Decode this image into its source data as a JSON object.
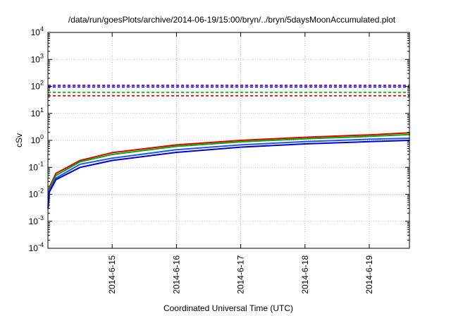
{
  "chart_data": {
    "type": "line",
    "title": "/data/run/goesPlots/archive/2014-06-19/15:00/bryn/../bryn/5daysMoonAccumulated.plot",
    "xlabel": "Coordinated Universal Time (UTC)",
    "ylabel": "cSv",
    "y_scale": "log",
    "ylim": [
      0.0001,
      10000
    ],
    "xlim": [
      "2014-06-14 00:00",
      "2014-06-19 15:00"
    ],
    "grid": true,
    "legend": "none",
    "x_ticks": [
      "2014-6-15",
      "2014-6-16",
      "2014-6-17",
      "2014-6-18",
      "2014-6-19"
    ],
    "y_ticks": [
      {
        "base": "10",
        "exp": "-4"
      },
      {
        "base": "10",
        "exp": "-3"
      },
      {
        "base": "10",
        "exp": "-2"
      },
      {
        "base": "10",
        "exp": "-1"
      },
      {
        "base": "10",
        "exp": "0"
      },
      {
        "base": "10",
        "exp": "1"
      },
      {
        "base": "10",
        "exp": "2"
      },
      {
        "base": "10",
        "exp": "3"
      },
      {
        "base": "10",
        "exp": "4"
      }
    ],
    "x": [
      "2014-06-14 00:05",
      "2014-06-14 00:30",
      "2014-06-14 03:00",
      "2014-06-14 12:00",
      "2014-06-15 00:00",
      "2014-06-16 00:00",
      "2014-06-17 00:00",
      "2014-06-18 00:00",
      "2014-06-19 00:00",
      "2014-06-19 15:00"
    ],
    "series": [
      {
        "color": "#dd0000",
        "values": [
          0.004,
          0.018,
          0.06,
          0.18,
          0.35,
          0.68,
          1.0,
          1.3,
          1.6,
          1.9
        ]
      },
      {
        "color": "#00aa00",
        "values": [
          0.0035,
          0.016,
          0.05,
          0.16,
          0.3,
          0.6,
          0.88,
          1.15,
          1.4,
          1.65
        ]
      },
      {
        "color": "#2255ee",
        "values": [
          0.0032,
          0.014,
          0.04,
          0.13,
          0.22,
          0.45,
          0.68,
          0.9,
          1.1,
          1.2
        ]
      },
      {
        "color": "#0000dd",
        "values": [
          0.003,
          0.012,
          0.035,
          0.1,
          0.18,
          0.36,
          0.56,
          0.74,
          0.9,
          1.0
        ]
      }
    ],
    "thresholds": [
      {
        "color": "#8800cc",
        "value": 110,
        "style": "dashed"
      },
      {
        "color": "#0000dd",
        "value": 95,
        "style": "dashed"
      },
      {
        "color": "#00bb00",
        "value": 60,
        "style": "dashed"
      },
      {
        "color": "#dd0000",
        "value": 45,
        "style": "dashed"
      }
    ]
  }
}
